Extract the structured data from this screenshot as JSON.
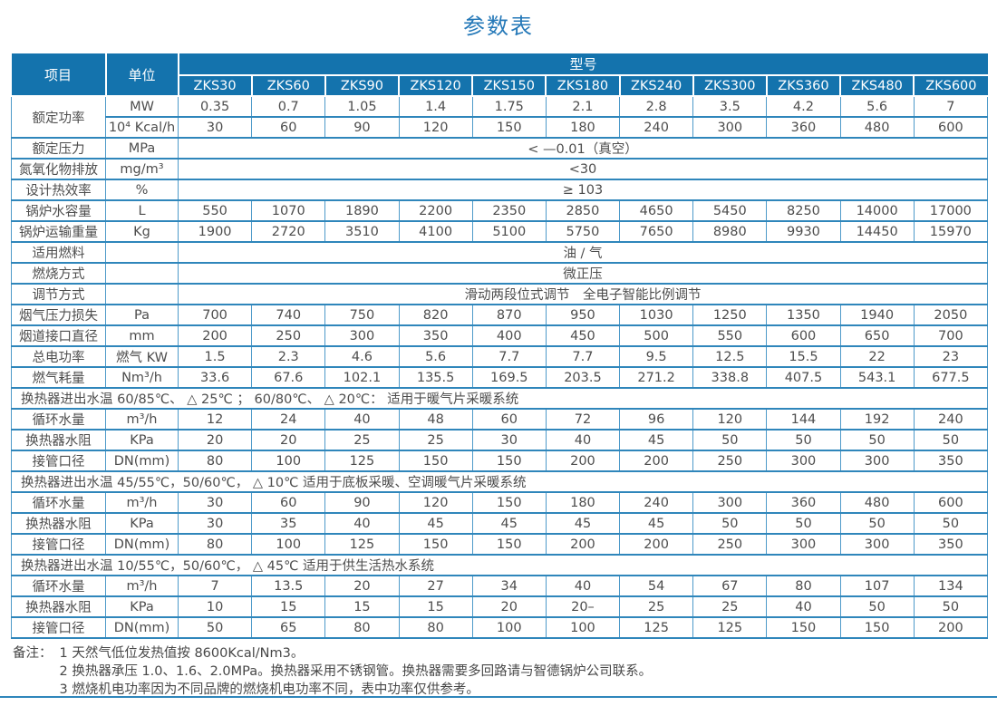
{
  "title": "参数表",
  "colors": {
    "header_bg": "#1473ad",
    "border_heavy": "#2f86bb",
    "border_light": "#4e9ac9",
    "title_color": "#2478b8",
    "text_color": "#4d4d4d"
  },
  "table": {
    "item_header": "项目",
    "unit_header": "单位",
    "model_group_header": "型号",
    "models": [
      "ZKS30",
      "ZKS60",
      "ZKS90",
      "ZKS120",
      "ZKS150",
      "ZKS180",
      "ZKS240",
      "ZKS300",
      "ZKS360",
      "ZKS480",
      "ZKS600"
    ],
    "rows": [
      {
        "type": "values",
        "item": "额定功率",
        "rowspan": 2,
        "unit": "MW",
        "values": [
          "0.35",
          "0.7",
          "1.05",
          "1.4",
          "1.75",
          "2.1",
          "2.8",
          "3.5",
          "4.2",
          "5.6",
          "7"
        ]
      },
      {
        "type": "values",
        "item": null,
        "unit": "10⁴ Kcal/h",
        "values": [
          "30",
          "60",
          "90",
          "120",
          "150",
          "180",
          "240",
          "300",
          "360",
          "480",
          "600"
        ]
      },
      {
        "type": "span",
        "item": "额定压力",
        "unit": "MPa",
        "value": "< —0.01（真空）"
      },
      {
        "type": "span",
        "item": "氮氧化物排放",
        "unit": "mg/m³",
        "value": "<30"
      },
      {
        "type": "span",
        "item": "设计热效率",
        "unit": "%",
        "value": "≥ 103"
      },
      {
        "type": "values",
        "item": "锅炉水容量",
        "unit": "L",
        "values": [
          "550",
          "1070",
          "1890",
          "2200",
          "2350",
          "2850",
          "4650",
          "5450",
          "8250",
          "14000",
          "17000"
        ]
      },
      {
        "type": "values",
        "item": "锅炉运输重量",
        "unit": "Kg",
        "values": [
          "1900",
          "2720",
          "3510",
          "4100",
          "5100",
          "5750",
          "7650",
          "8980",
          "9930",
          "14450",
          "15970"
        ]
      },
      {
        "type": "span",
        "item": "适用燃料",
        "unit": "",
        "value": "油 / 气"
      },
      {
        "type": "span",
        "item": "燃烧方式",
        "unit": "",
        "value": "微正压"
      },
      {
        "type": "span",
        "item": "调节方式",
        "unit": "",
        "value": "滑动两段位式调节　全电子智能比例调节"
      },
      {
        "type": "values",
        "item": "烟气压力损失",
        "unit": "Pa",
        "values": [
          "700",
          "740",
          "750",
          "820",
          "870",
          "950",
          "1030",
          "1250",
          "1350",
          "1940",
          "2050"
        ]
      },
      {
        "type": "values",
        "item": "烟道接口直径",
        "unit": "mm",
        "values": [
          "200",
          "250",
          "300",
          "350",
          "400",
          "450",
          "500",
          "550",
          "600",
          "650",
          "700"
        ]
      },
      {
        "type": "values",
        "item": "总电功率",
        "unit": "燃气 KW",
        "values": [
          "1.5",
          "2.3",
          "4.6",
          "5.6",
          "7.7",
          "7.7",
          "9.5",
          "12.5",
          "15.5",
          "22",
          "23"
        ]
      },
      {
        "type": "values",
        "item": "燃气耗量",
        "unit": "Nm³/h",
        "values": [
          "33.6",
          "67.6",
          "102.1",
          "135.5",
          "169.5",
          "203.5",
          "271.2",
          "338.8",
          "407.5",
          "543.1",
          "677.5"
        ]
      },
      {
        "type": "section",
        "text": "换热器进出水温 60/85℃、 △ 25℃ ； 60/80℃、 △ 20℃：  适用于暖气片采暖系统"
      },
      {
        "type": "values",
        "item": "循环水量",
        "unit": "m³/h",
        "values": [
          "12",
          "24",
          "40",
          "48",
          "60",
          "72",
          "96",
          "120",
          "144",
          "192",
          "240"
        ]
      },
      {
        "type": "values",
        "item": "换热器水阻",
        "unit": "KPa",
        "values": [
          "20",
          "20",
          "25",
          "25",
          "30",
          "40",
          "45",
          "50",
          "50",
          "50",
          "50"
        ]
      },
      {
        "type": "values",
        "item": "接管口径",
        "unit": "DN(mm)",
        "values": [
          "80",
          "100",
          "125",
          "150",
          "150",
          "200",
          "200",
          "250",
          "300",
          "300",
          "350"
        ]
      },
      {
        "type": "section",
        "text": "换热器进出水温 45/55℃，50/60℃，  △ 10℃  适用于底板采暖、空调暖气片采暖系统"
      },
      {
        "type": "values",
        "item": "循环水量",
        "unit": "m³/h",
        "values": [
          "30",
          "60",
          "90",
          "120",
          "150",
          "180",
          "240",
          "300",
          "360",
          "480",
          "600"
        ]
      },
      {
        "type": "values",
        "item": "换热器水阻",
        "unit": "KPa",
        "values": [
          "30",
          "35",
          "40",
          "45",
          "45",
          "45",
          "45",
          "50",
          "50",
          "50",
          "50"
        ]
      },
      {
        "type": "values",
        "item": "接管口径",
        "unit": "DN(mm)",
        "values": [
          "80",
          "100",
          "125",
          "150",
          "150",
          "200",
          "200",
          "250",
          "300",
          "300",
          "350"
        ]
      },
      {
        "type": "section",
        "text": "换热器进出水温 10/55℃，50/60℃，  △ 45℃  适用于供生活热水系统"
      },
      {
        "type": "values",
        "item": "循环水量",
        "unit": "m³/h",
        "values": [
          "7",
          "13.5",
          "20",
          "27",
          "34",
          "40",
          "54",
          "67",
          "80",
          "107",
          "134"
        ]
      },
      {
        "type": "values",
        "item": "换热器水阻",
        "unit": "KPa",
        "values": [
          "10",
          "15",
          "15",
          "15",
          "20",
          "20–",
          "25",
          "25",
          "40",
          "50",
          "50"
        ]
      },
      {
        "type": "values",
        "item": "接管口径",
        "unit": "DN(mm)",
        "values": [
          "50",
          "65",
          "80",
          "80",
          "100",
          "100",
          "125",
          "125",
          "150",
          "150",
          "200"
        ]
      }
    ]
  },
  "notes": {
    "label": "备注：",
    "items": [
      "1  天然气低位发热值按 8600Kcal/Nm3。",
      "2  换热器承压 1.0、1.6、2.0MPa。换热器采用不锈钢管。换热器需要多回路请与智德锅炉公司联系。",
      "3  燃烧机电功率因为不同品牌的燃烧机电功率不同，表中功率仅供参考。"
    ]
  }
}
